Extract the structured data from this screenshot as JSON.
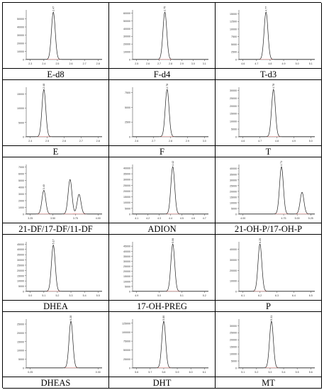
{
  "chart_data": [
    {
      "label": "E-d8",
      "type": "line",
      "y_ticks": [
        "0",
        "10000",
        "20000",
        "30000",
        "40000",
        "50000"
      ],
      "x_ticks": [
        "2.3",
        "2.4",
        "2.5",
        "2.6",
        "2.7",
        "2.8"
      ],
      "peaks": [
        {
          "rt": 2.47,
          "height": 58000,
          "label": "2.47"
        }
      ]
    },
    {
      "label": "F-d4",
      "type": "line",
      "y_ticks": [
        "0",
        "10000",
        "20000",
        "30000",
        "40000",
        "50000",
        "60000"
      ],
      "x_ticks": [
        "2.5",
        "2.6",
        "2.7",
        "2.8",
        "2.9",
        "3.0",
        "3.1"
      ],
      "peaks": [
        {
          "rt": 2.75,
          "height": 61000,
          "label": "2.75"
        }
      ]
    },
    {
      "label": "T-d3",
      "type": "line",
      "y_ticks": [
        "0",
        "2500",
        "5000",
        "7500",
        "10000",
        "12500",
        "15000"
      ],
      "x_ticks": [
        "4.6",
        "4.7",
        "4.8",
        "4.9",
        "5.0",
        "5.1"
      ],
      "peaks": [
        {
          "rt": 4.77,
          "height": 15500,
          "label": "4.77"
        }
      ]
    },
    {
      "label": "E",
      "type": "line",
      "y_ticks": [
        "0",
        "5000",
        "10000",
        "15000"
      ],
      "x_ticks": [
        "2.4",
        "2.5",
        "2.6",
        "2.7",
        "2.8"
      ],
      "peaks": [
        {
          "rt": 2.48,
          "height": 16500,
          "label": "2.48"
        }
      ]
    },
    {
      "label": "F",
      "type": "line",
      "y_ticks": [
        "0",
        "2500",
        "5000",
        "7500"
      ],
      "x_ticks": [
        "2.6",
        "2.7",
        "2.8",
        "2.9",
        "3.0"
      ],
      "peaks": [
        {
          "rt": 2.78,
          "height": 8000,
          "label": "2.78"
        }
      ]
    },
    {
      "label": "T",
      "type": "line",
      "y_ticks": [
        "0",
        "5000",
        "10000",
        "15000",
        "20000",
        "25000",
        "30000"
      ],
      "x_ticks": [
        "4.6",
        "4.7",
        "4.8",
        "4.9",
        "5.0"
      ],
      "peaks": [
        {
          "rt": 4.78,
          "height": 30500,
          "label": "4.78"
        }
      ]
    },
    {
      "label": "21-DF/17-DF/11-DF",
      "type": "line",
      "y_ticks": [
        "0",
        "1000",
        "2000",
        "3000",
        "4000",
        "5000",
        "6000",
        "7000"
      ],
      "x_ticks": [
        "3.25",
        "3.50",
        "3.75",
        "4.00"
      ],
      "peaks": [
        {
          "rt": 3.4,
          "height": 3500,
          "label": "3.40"
        },
        {
          "rt": 3.69,
          "height": 5100,
          "label": ""
        },
        {
          "rt": 3.79,
          "height": 2900,
          "label": ""
        }
      ]
    },
    {
      "label": "ADION",
      "type": "line",
      "y_ticks": [
        "0",
        "5000",
        "10000",
        "15000",
        "20000",
        "25000",
        "30000",
        "35000",
        "40000"
      ],
      "x_ticks": [
        "4.1",
        "4.2",
        "4.3",
        "4.4",
        "4.5",
        "4.6",
        "4.7"
      ],
      "peaks": [
        {
          "rt": 4.42,
          "height": 41000,
          "label": "4.42"
        }
      ]
    },
    {
      "label": "21-OH-P/17-OH-P",
      "type": "line",
      "y_ticks": [
        "0",
        "5000",
        "10000",
        "15000",
        "20000",
        "25000",
        "30000",
        "35000",
        "40000"
      ],
      "x_ticks": [
        "4.00",
        "4.75",
        "5.00",
        "5.25"
      ],
      "peaks": [
        {
          "rt": 4.71,
          "height": 41500,
          "label": "4.71"
        },
        {
          "rt": 5.09,
          "height": 19000,
          "label": ""
        }
      ]
    },
    {
      "label": "DHEA",
      "type": "line",
      "y_ticks": [
        "0",
        "5000",
        "10000",
        "15000",
        "20000",
        "25000",
        "30000",
        "35000",
        "40000",
        "45000"
      ],
      "x_ticks": [
        "5.0",
        "5.1",
        "5.2",
        "5.3",
        "5.4",
        "5.5"
      ],
      "peaks": [
        {
          "rt": 5.17,
          "height": 44000,
          "label": "5.17"
        }
      ]
    },
    {
      "label": "17-OH-PREG",
      "type": "line",
      "y_ticks": [
        "0",
        "5000",
        "10000",
        "15000",
        "20000",
        "25000",
        "30000",
        "35000",
        "40000",
        "45000"
      ],
      "x_ticks": [
        "4.9",
        "5.0",
        "5.1",
        "5.2"
      ],
      "peaks": [
        {
          "rt": 5.06,
          "height": 47000,
          "label": "5.06"
        }
      ]
    },
    {
      "label": "P",
      "type": "line",
      "y_ticks": [
        "0",
        "10000",
        "20000",
        "30000",
        "40000"
      ],
      "x_ticks": [
        "6.1",
        "6.2",
        "6.3",
        "6.4",
        "6.5"
      ],
      "peaks": [
        {
          "rt": 6.2,
          "height": 45000,
          "label": "6.20"
        }
      ]
    },
    {
      "label": "DHEAS",
      "type": "line",
      "y_ticks": [
        "0",
        "5000",
        "10000",
        "15000",
        "20000",
        "25000"
      ],
      "x_ticks": [
        "0.25",
        "0.30"
      ],
      "peaks": [
        {
          "rt": 0.28,
          "height": 26500,
          "label": "0.28"
        }
      ]
    },
    {
      "label": "DHT",
      "type": "line",
      "y_ticks": [
        "0",
        "25000",
        "50000",
        "75000",
        "100000",
        "125000"
      ],
      "x_ticks": [
        "5.6",
        "5.7",
        "5.8",
        "5.9",
        "6.0",
        "6.1"
      ],
      "peaks": [
        {
          "rt": 5.8,
          "height": 130000,
          "label": "5.80"
        }
      ]
    },
    {
      "label": "MT",
      "type": "line",
      "y_ticks": [
        "0",
        "5000",
        "10000",
        "15000",
        "20000",
        "25000",
        "30000"
      ],
      "x_ticks": [
        "5.1",
        "5.2",
        "5.3",
        "5.4",
        "5.5",
        "5.6"
      ],
      "peaks": [
        {
          "rt": 5.31,
          "height": 33000,
          "label": "5.31"
        }
      ]
    }
  ]
}
